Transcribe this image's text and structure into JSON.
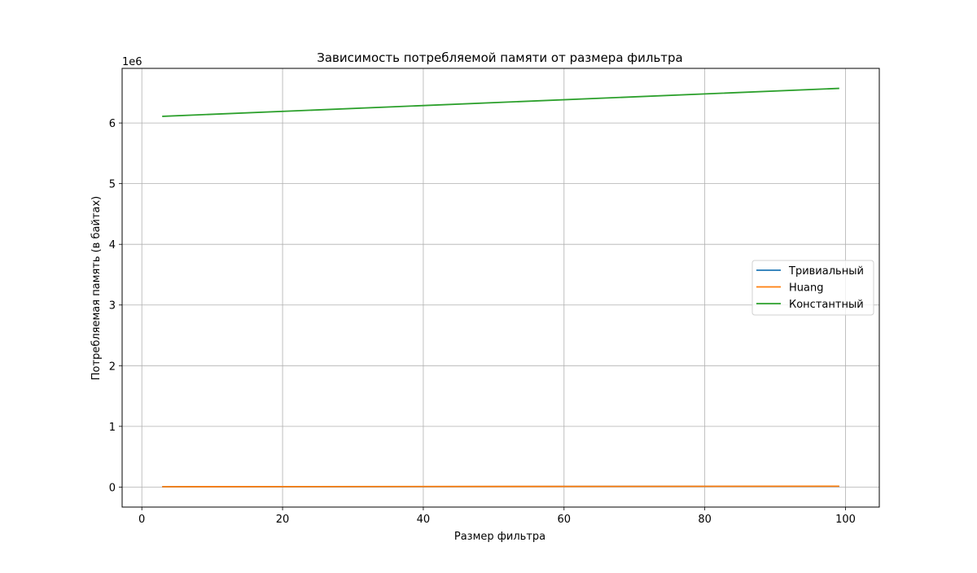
{
  "chart_data": {
    "type": "line",
    "title": "Зависимость потребляемой памяти от размера фильтра",
    "xlabel": "Размер фильтра",
    "ylabel": "Потребляемая память (в байтах)",
    "y_offset_label": "1e6",
    "y_scale": 1000000,
    "xlim": [
      -2.8,
      104.8
    ],
    "ylim": [
      -330000,
      6900000
    ],
    "x_ticks": [
      0,
      20,
      40,
      60,
      80,
      100
    ],
    "x_tick_labels": [
      "0",
      "20",
      "40",
      "60",
      "80",
      "100"
    ],
    "y_ticks": [
      0,
      1000000,
      2000000,
      3000000,
      4000000,
      5000000,
      6000000
    ],
    "y_tick_labels": [
      "0",
      "1",
      "2",
      "3",
      "4",
      "5",
      "6"
    ],
    "grid": true,
    "legend_position": "center-right",
    "series": [
      {
        "name": "Тривиальный",
        "color": "#1f77b4",
        "x": [
          3,
          99
        ],
        "y": [
          4000,
          12000
        ]
      },
      {
        "name": "Huang",
        "color": "#ff7f0e",
        "x": [
          3,
          99
        ],
        "y": [
          5000,
          14000
        ]
      },
      {
        "name": "Константный",
        "color": "#2ca02c",
        "x": [
          3,
          99
        ],
        "y": [
          6110000,
          6570000
        ]
      }
    ]
  }
}
